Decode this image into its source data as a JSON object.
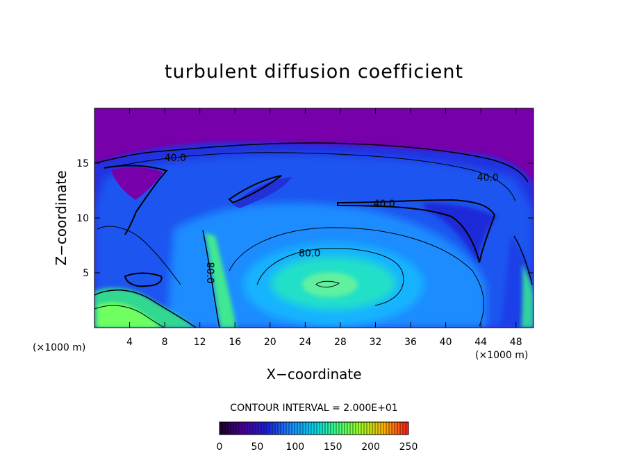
{
  "chart_data": {
    "type": "heatmap",
    "title": "turbulent diffusion coefficient",
    "xlabel": "X−coordinate",
    "ylabel": "Z−coordinate",
    "x_unit": "(×1000 m)",
    "z_unit": "(×1000 m)",
    "xlim": [
      0,
      50
    ],
    "ylim": [
      0,
      20
    ],
    "x_ticks": [
      4,
      8,
      12,
      16,
      20,
      24,
      28,
      32,
      36,
      40,
      44,
      48
    ],
    "y_ticks": [
      5,
      10,
      15
    ],
    "contour_interval_text": "CONTOUR INTERVAL = 2.000E+01",
    "contour_labels": [
      {
        "text": "40.0",
        "x": 9.2,
        "z": 15.2
      },
      {
        "text": "40.0",
        "x": 44.8,
        "z": 13.4
      },
      {
        "text": "40.0",
        "x": 33.0,
        "z": 11.0
      },
      {
        "text": "80.0",
        "x": 24.5,
        "z": 6.5
      },
      {
        "text": "80.0",
        "x": 12.8,
        "z": 5.0
      }
    ],
    "colorbar": {
      "range": [
        0,
        250
      ],
      "tick_values": [
        0,
        50,
        100,
        150,
        200,
        250
      ],
      "tick_labels": [
        "0",
        "50",
        "100",
        "150",
        "200",
        "250"
      ],
      "colors": [
        "#200030",
        "#4b00a0",
        "#1a22e0",
        "#1a8cff",
        "#00d4ee",
        "#40ff80",
        "#a0ff20",
        "#ffb400",
        "#ff2020"
      ]
    },
    "background_color": "#7700aa",
    "field_features": [
      {
        "name": "main-eddy-core",
        "x": 26,
        "z": 3.8,
        "value": 120
      },
      {
        "name": "upper-shear-layer",
        "x": 25,
        "z": 15.4,
        "value": 40
      },
      {
        "name": "left-near-ground",
        "x": 2,
        "z": 2.2,
        "value": 140
      }
    ]
  }
}
